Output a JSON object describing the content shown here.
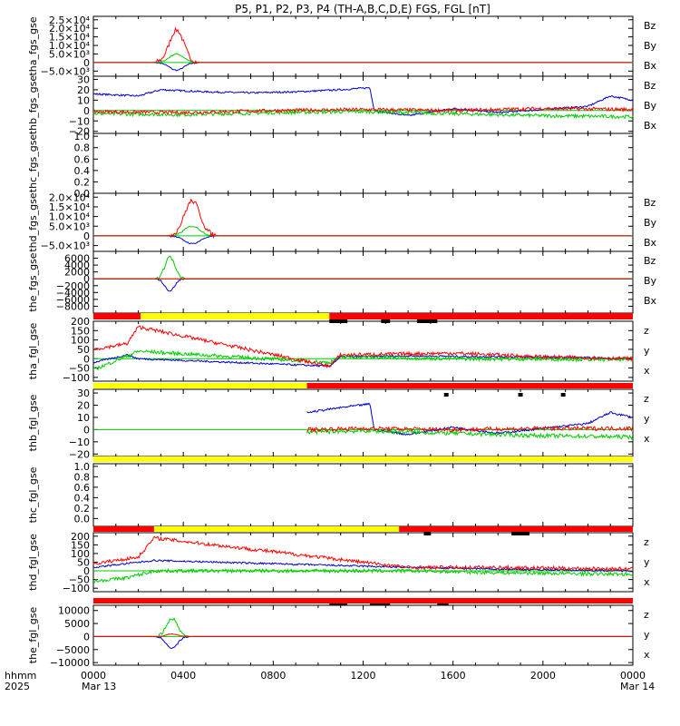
{
  "title": "P5, P1, P2, P3, P4 (TH-A,B,C,D,E) FGS, FGL [nT]",
  "colors": {
    "z": "#ff0000",
    "y": "#00cc00",
    "x": "#0000cc",
    "bar_red": "#ff0000",
    "bar_yellow": "#ffff00",
    "bar_black": "#000000"
  },
  "chart_data": {
    "type": "line",
    "x_axis": {
      "unit": "hours since 2025-03-13 0000 UT",
      "range": [
        0,
        24
      ],
      "ticks": [
        0,
        4,
        8,
        12,
        16,
        20,
        24
      ],
      "tick_labels": [
        "0000",
        "0400",
        "0800",
        "1200",
        "1600",
        "2000",
        "0000"
      ],
      "date_labels": [
        "Mar 13",
        "Mar 14"
      ],
      "row_label_top": "hhmm",
      "row_label_bottom": "2025"
    },
    "panels": [
      {
        "ylabel": "tha_fgs_gse",
        "ylim": [
          -8000,
          27000
        ],
        "ticks": [
          -5000,
          0,
          5000,
          10000,
          15000,
          20000,
          25000
        ],
        "tick_labels": [
          "−5.0×10³",
          "0",
          "5.0×10³",
          "1.0×10⁴",
          "1.5×10⁴",
          "2.0×10⁴",
          "2.5×10⁴"
        ],
        "legend": [
          "Bz",
          "By",
          "Bx"
        ],
        "style": "spike",
        "peak_hour": 3.7,
        "peak_width": 0.45,
        "spike": {
          "z": 19000,
          "y": 5000,
          "x": -4500
        },
        "base": {
          "z": 0,
          "y": 0,
          "x": 0
        }
      },
      {
        "ylabel": "thb_fgs_gse",
        "ylim": [
          -22,
          33
        ],
        "ticks": [
          -20,
          -10,
          0,
          10,
          20,
          30
        ],
        "tick_labels": [
          "−20",
          "−10",
          "0",
          "10",
          "20",
          "30"
        ],
        "legend": [
          "Bz",
          "By",
          "Bx"
        ],
        "style": "noisy",
        "x_profile": [
          [
            0,
            16
          ],
          [
            2,
            14
          ],
          [
            3,
            20
          ],
          [
            5,
            18
          ],
          [
            7,
            17
          ],
          [
            9,
            18
          ],
          [
            11,
            20
          ],
          [
            12.3,
            22
          ],
          [
            12.5,
            0
          ],
          [
            14,
            -5
          ],
          [
            16,
            2
          ],
          [
            18,
            -2
          ],
          [
            20,
            1
          ],
          [
            22,
            4
          ],
          [
            23,
            14
          ],
          [
            24,
            10
          ]
        ],
        "y_profile": [
          [
            0,
            -3
          ],
          [
            4,
            -4
          ],
          [
            8,
            -2
          ],
          [
            12,
            -1
          ],
          [
            16,
            -3
          ],
          [
            20,
            -5
          ],
          [
            24,
            -6
          ]
        ],
        "z_profile": [
          [
            0,
            -1
          ],
          [
            4,
            -2
          ],
          [
            8,
            0
          ],
          [
            12,
            1
          ],
          [
            16,
            0
          ],
          [
            20,
            2
          ],
          [
            24,
            1
          ]
        ]
      },
      {
        "ylabel": "thc_fgs_gse",
        "ylim": [
          0,
          1.05
        ],
        "ticks": [
          0,
          0.2,
          0.4,
          0.6,
          0.8,
          1.0
        ],
        "tick_labels": [
          "0.0",
          "0.2",
          "0.4",
          "0.6",
          "0.8",
          "1.0"
        ],
        "legend": [],
        "style": "empty"
      },
      {
        "ylabel": "thd_fgs_gse",
        "ylim": [
          -8000,
          22000
        ],
        "ticks": [
          -5000,
          0,
          5000,
          10000,
          15000,
          20000
        ],
        "tick_labels": [
          "−5.0×10³",
          "0",
          "5.0×10³",
          "1.0×10⁴",
          "1.5×10⁴",
          "2.0×10⁴"
        ],
        "legend": [
          "Bz",
          "By",
          "Bx"
        ],
        "style": "spike",
        "peak_hour": 4.4,
        "peak_width": 0.5,
        "spike": {
          "z": 18000,
          "y": 5000,
          "x": -4000
        },
        "base": {
          "z": 0,
          "y": 0,
          "x": 0
        }
      },
      {
        "ylabel": "the_fgs_gse",
        "ylim": [
          -10000,
          8000
        ],
        "ticks": [
          -8000,
          -6000,
          -4000,
          -2000,
          0,
          2000,
          4000,
          6000
        ],
        "tick_labels": [
          "−8000",
          "−6000",
          "−4000",
          "−2000",
          "0",
          "2000",
          "4000",
          "6000"
        ],
        "legend": [
          "Bz",
          "By",
          "Bx"
        ],
        "style": "spike",
        "peak_hour": 3.4,
        "peak_width": 0.3,
        "spike": {
          "z": 0,
          "y": 6500,
          "x": -3500
        },
        "base": {
          "z": 0,
          "y": 0,
          "x": 0
        }
      },
      {
        "ylabel": "tha_fgl_gse",
        "ylim": [
          -120,
          200
        ],
        "ticks": [
          -100,
          -50,
          0,
          50,
          100,
          150,
          200
        ],
        "tick_labels": [
          "−100",
          "−50",
          "0",
          "50",
          "100",
          "150",
          "200"
        ],
        "legend": [
          "z",
          "y",
          "x"
        ],
        "style": "noisy",
        "x_profile": [
          [
            0,
            -20
          ],
          [
            1.5,
            20
          ],
          [
            2,
            0
          ],
          [
            10.5,
            -40
          ],
          [
            11,
            10
          ],
          [
            14,
            15
          ],
          [
            18,
            10
          ],
          [
            22,
            5
          ],
          [
            24,
            0
          ]
        ],
        "y_profile": [
          [
            0,
            -60
          ],
          [
            2,
            40
          ],
          [
            10.5,
            -20
          ],
          [
            11,
            10
          ],
          [
            16,
            0
          ],
          [
            24,
            -5
          ]
        ],
        "z_profile": [
          [
            0,
            50
          ],
          [
            1.5,
            80
          ],
          [
            2,
            170
          ],
          [
            10.5,
            -40
          ],
          [
            11,
            20
          ],
          [
            16,
            30
          ],
          [
            20,
            10
          ],
          [
            24,
            0
          ]
        ]
      },
      {
        "ylabel": "thb_fgl_gse",
        "ylim": [
          -22,
          33
        ],
        "ticks": [
          -20,
          -10,
          0,
          10,
          20,
          30
        ],
        "tick_labels": [
          "−20",
          "−10",
          "0",
          "10",
          "20",
          "30"
        ],
        "legend": [
          "z",
          "y",
          "x"
        ],
        "style": "noisy",
        "start_hour": 9.5,
        "x_profile": [
          [
            9.5,
            14
          ],
          [
            11,
            18
          ],
          [
            12.3,
            21
          ],
          [
            12.5,
            0
          ],
          [
            14,
            -4
          ],
          [
            16,
            2
          ],
          [
            18,
            -3
          ],
          [
            20,
            1
          ],
          [
            22,
            5
          ],
          [
            23,
            14
          ],
          [
            24,
            10
          ]
        ],
        "y_profile": [
          [
            9.5,
            -2
          ],
          [
            12,
            -1
          ],
          [
            16,
            -3
          ],
          [
            20,
            -5
          ],
          [
            24,
            -6
          ]
        ],
        "z_profile": [
          [
            9.5,
            0
          ],
          [
            12,
            1
          ],
          [
            16,
            0
          ],
          [
            20,
            1
          ],
          [
            24,
            1
          ]
        ]
      },
      {
        "ylabel": "thc_fgl_gse",
        "ylim": [
          -0.15,
          1.05
        ],
        "ticks": [
          0,
          0.2,
          0.4,
          0.6,
          0.8,
          1.0
        ],
        "tick_labels": [
          "0.0",
          "0.2",
          "0.4",
          "0.6",
          "0.8",
          "1.0"
        ],
        "legend": [],
        "style": "empty"
      },
      {
        "ylabel": "thd_fgl_gse",
        "ylim": [
          -120,
          220
        ],
        "ticks": [
          -100,
          -50,
          0,
          50,
          100,
          150,
          200
        ],
        "tick_labels": [
          "−100",
          "−50",
          "0",
          "50",
          "100",
          "150",
          "200"
        ],
        "legend": [
          "z",
          "y",
          "x"
        ],
        "style": "noisy",
        "x_profile": [
          [
            0,
            20
          ],
          [
            2.7,
            60
          ],
          [
            14,
            20
          ],
          [
            18,
            10
          ],
          [
            24,
            0
          ]
        ],
        "y_profile": [
          [
            0,
            -60
          ],
          [
            1.5,
            -40
          ],
          [
            2.7,
            0
          ],
          [
            14,
            0
          ],
          [
            18,
            -10
          ],
          [
            24,
            -20
          ]
        ],
        "z_profile": [
          [
            0,
            40
          ],
          [
            2,
            80
          ],
          [
            2.7,
            190
          ],
          [
            14,
            20
          ],
          [
            18,
            20
          ],
          [
            24,
            10
          ]
        ]
      },
      {
        "ylabel": "the_fgl_gse",
        "ylim": [
          -11000,
          12000
        ],
        "ticks": [
          -10000,
          -5000,
          0,
          5000,
          10000
        ],
        "tick_labels": [
          "−10000",
          "−5000",
          "0",
          "5000",
          "10000"
        ],
        "legend": [
          "z",
          "y",
          "x"
        ],
        "style": "spike",
        "peak_hour": 3.5,
        "peak_width": 0.35,
        "spike": {
          "z": 1000,
          "y": 7000,
          "x": -4500
        },
        "base": {
          "z": 0,
          "y": 0,
          "x": 0
        }
      }
    ],
    "mode_bars": [
      {
        "after_panel": 4,
        "segments": [
          [
            0,
            2.1,
            "red"
          ],
          [
            2.1,
            10.5,
            "yellow"
          ],
          [
            10.5,
            24,
            "red"
          ]
        ],
        "marks": [
          [
            10.5,
            11.3
          ],
          [
            12.8,
            13.2
          ],
          [
            14.4,
            15.3
          ]
        ]
      },
      {
        "after_panel": 5,
        "segments": [
          [
            0,
            9.5,
            "yellow"
          ],
          [
            9.5,
            24,
            "red"
          ]
        ],
        "marks": [
          [
            15.6,
            15.8
          ],
          [
            18.9,
            19.1
          ],
          [
            20.8,
            21.0
          ]
        ]
      },
      {
        "after_panel": 6,
        "segments": [
          [
            0,
            24,
            "yellow"
          ]
        ],
        "marks": []
      },
      {
        "after_panel": 7,
        "segments": [
          [
            0,
            2.7,
            "red"
          ],
          [
            2.7,
            13.6,
            "yellow"
          ],
          [
            13.6,
            24,
            "red"
          ]
        ],
        "marks": [
          [
            14.7,
            15.0
          ],
          [
            18.6,
            19.4
          ]
        ]
      },
      {
        "after_panel": 8,
        "segments": [
          [
            0,
            24,
            "red"
          ]
        ],
        "marks": [
          [
            10.5,
            11.3
          ],
          [
            12.3,
            13.2
          ],
          [
            15.3,
            15.8
          ]
        ]
      }
    ]
  }
}
